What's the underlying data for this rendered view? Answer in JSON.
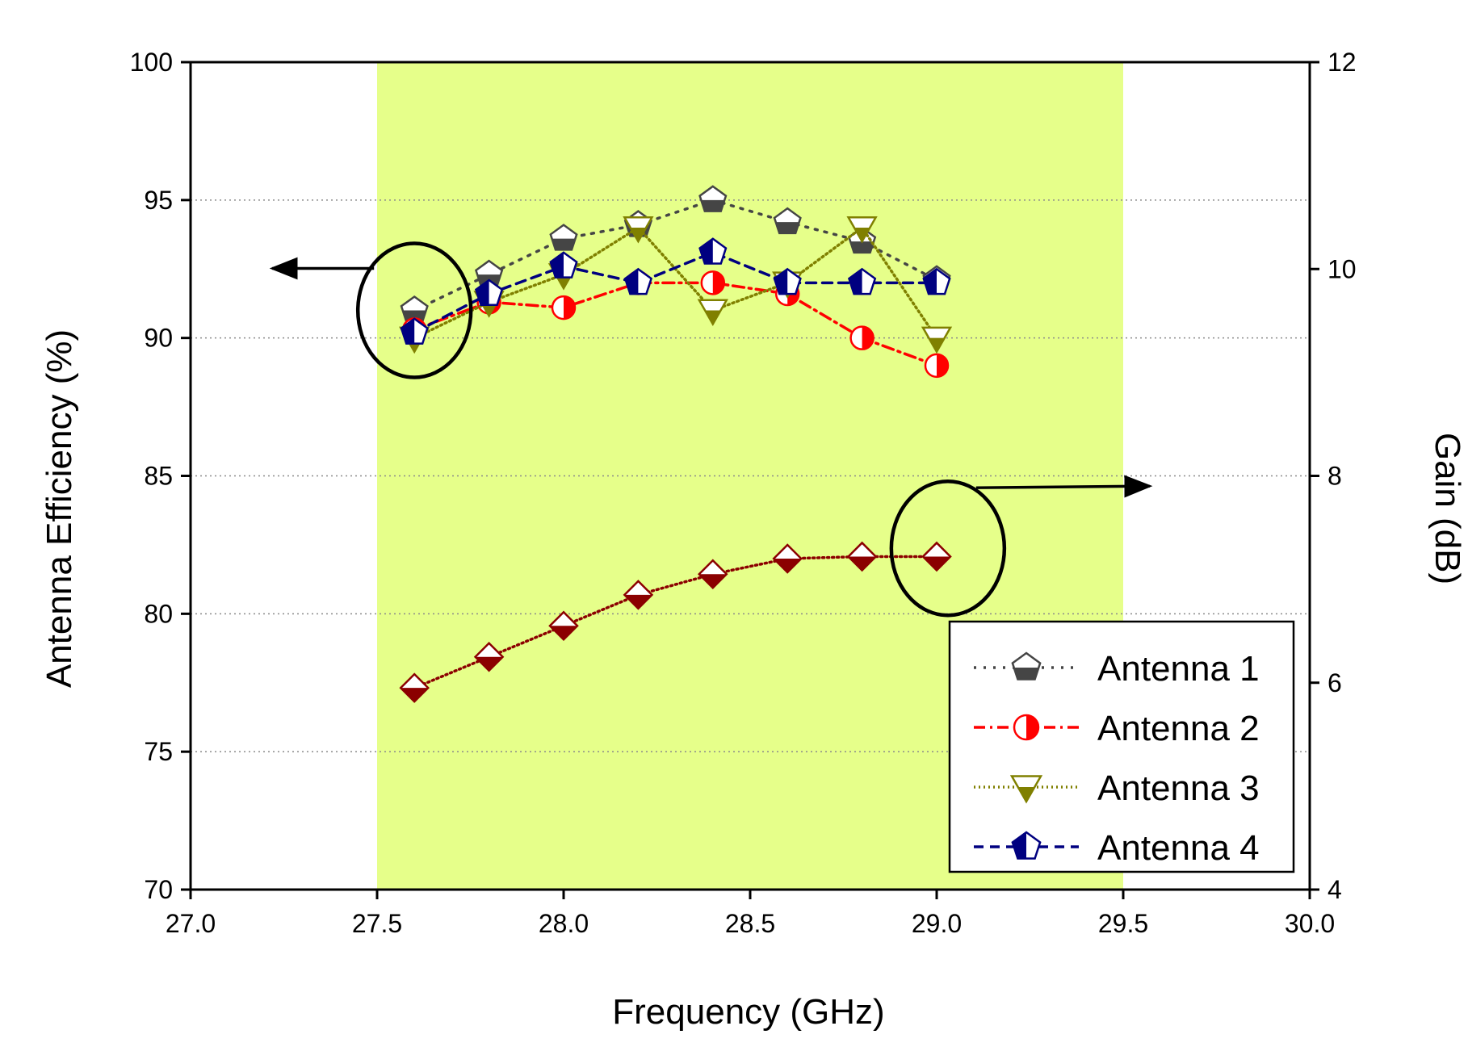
{
  "chart_data": {
    "type": "line",
    "xlabel": "Frequency (GHz)",
    "ylabel": "Antenna Efficiency (%)",
    "y2label": "Gain (dB)",
    "xlim": [
      27.0,
      30.0
    ],
    "ylim": [
      70,
      100
    ],
    "y2lim": [
      4,
      12
    ],
    "x_ticks": [
      "27.0",
      "27.5",
      "28.0",
      "28.5",
      "29.0",
      "29.5",
      "30.0"
    ],
    "y_ticks": [
      "70",
      "75",
      "80",
      "85",
      "90",
      "95",
      "100"
    ],
    "y2_ticks": [
      "4",
      "6",
      "8",
      "10",
      "12"
    ],
    "grid": "horizontal dotted",
    "highlight_band": {
      "from": 27.5,
      "to": 29.5,
      "color": "#e6ff8a"
    },
    "legend_position": "bottom-right",
    "x": [
      27.6,
      27.8,
      28.0,
      28.2,
      28.4,
      28.6,
      28.8,
      29.0
    ],
    "series": [
      {
        "name": "Antenna 1",
        "axis": "left",
        "color": "#454545",
        "marker": "pentagon",
        "dash": "dot",
        "values": [
          91.0,
          92.3,
          93.6,
          94.1,
          95.0,
          94.2,
          93.5,
          92.1
        ]
      },
      {
        "name": "Antenna 2",
        "axis": "left",
        "color": "#ff0000",
        "marker": "circle",
        "dash": "dashdot",
        "values": [
          90.3,
          91.3,
          91.1,
          92.0,
          92.0,
          91.6,
          90.0,
          89.0
        ]
      },
      {
        "name": "Antenna 3",
        "axis": "left",
        "color": "#808000",
        "marker": "triangle-down",
        "dash": "dot-fine",
        "values": [
          90.0,
          91.3,
          92.3,
          94.0,
          91.0,
          92.0,
          94.0,
          90.0
        ]
      },
      {
        "name": "Antenna 4",
        "axis": "left",
        "color": "#000080",
        "marker": "pentagon",
        "dash": "dash",
        "values": [
          90.2,
          91.6,
          92.6,
          92.0,
          93.1,
          92.0,
          92.0,
          92.0
        ]
      },
      {
        "name": "Gain",
        "axis": "right",
        "color": "#8b0000",
        "marker": "diamond",
        "dash": "dot-fine",
        "in_legend": false,
        "values": [
          5.95,
          6.25,
          6.55,
          6.85,
          7.05,
          7.2,
          7.22,
          7.22
        ]
      }
    ],
    "annotations": [
      {
        "type": "ellipse",
        "at": [
          27.6,
          91
        ],
        "axis": "left",
        "arrow_direction": "left"
      },
      {
        "type": "ellipse",
        "at": [
          29.03,
          7.3
        ],
        "axis": "right",
        "arrow_direction": "right"
      }
    ]
  }
}
